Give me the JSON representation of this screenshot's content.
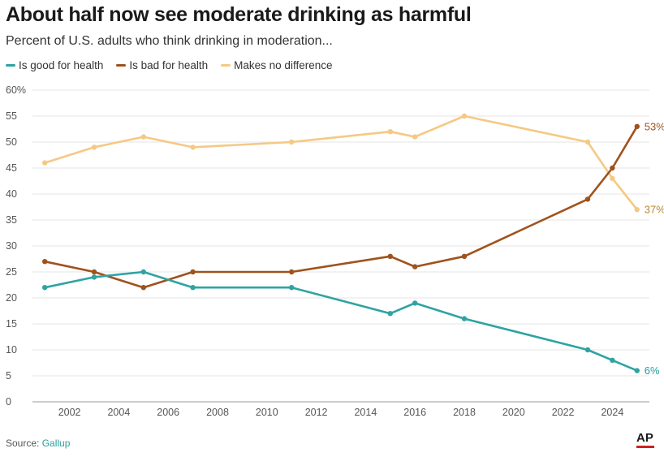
{
  "title": "About half now see moderate drinking as harmful",
  "subtitle": "Percent of U.S. adults who think drinking in moderation...",
  "source_label": "Source:",
  "source_name": "Gallup",
  "logo_text": "AP",
  "colors": {
    "good": "#2fa3a3",
    "bad": "#a0521c",
    "no_difference": "#f5c983",
    "grid": "#e6e6e6",
    "logo_accent": "#d21f1f"
  },
  "chart_data": {
    "type": "line",
    "title": "About half now see moderate drinking as harmful",
    "subtitle": "Percent of U.S. adults who think drinking in moderation...",
    "xlabel": "",
    "ylabel": "",
    "xlim": [
      2000.5,
      2025.5
    ],
    "ylim": [
      0,
      60
    ],
    "yticks": [
      0,
      5,
      10,
      15,
      20,
      25,
      30,
      35,
      40,
      45,
      50,
      55,
      60
    ],
    "ytick_labels": [
      "0",
      "5",
      "10",
      "15",
      "20",
      "25",
      "30",
      "35",
      "40",
      "45",
      "50",
      "55",
      "60%"
    ],
    "xticks": [
      2002,
      2004,
      2006,
      2008,
      2010,
      2012,
      2014,
      2016,
      2018,
      2020,
      2022,
      2024
    ],
    "xtick_labels": [
      "2002",
      "2004",
      "2006",
      "2008",
      "2010",
      "2012",
      "2014",
      "2016",
      "2018",
      "2020",
      "2022",
      "2024"
    ],
    "grid": true,
    "legend_position": "top-left",
    "series": [
      {
        "name": "Is good for health",
        "color": "#2fa3a3",
        "end_label": "6%",
        "x": [
          2001,
          2003,
          2005,
          2007,
          2011,
          2015,
          2016,
          2018,
          2023,
          2024,
          2025
        ],
        "y": [
          22,
          24,
          25,
          22,
          22,
          17,
          19,
          16,
          10,
          8,
          6
        ]
      },
      {
        "name": "Is bad for health",
        "color": "#a0521c",
        "end_label": "53%",
        "x": [
          2001,
          2003,
          2005,
          2007,
          2011,
          2015,
          2016,
          2018,
          2023,
          2024,
          2025
        ],
        "y": [
          27,
          25,
          22,
          25,
          25,
          28,
          26,
          28,
          39,
          45,
          53
        ]
      },
      {
        "name": "Makes no difference",
        "color": "#f5c983",
        "end_label": "37%",
        "x": [
          2001,
          2003,
          2005,
          2007,
          2011,
          2015,
          2016,
          2018,
          2023,
          2024,
          2025
        ],
        "y": [
          46,
          49,
          51,
          49,
          50,
          52,
          51,
          55,
          50,
          43,
          37
        ]
      }
    ]
  }
}
